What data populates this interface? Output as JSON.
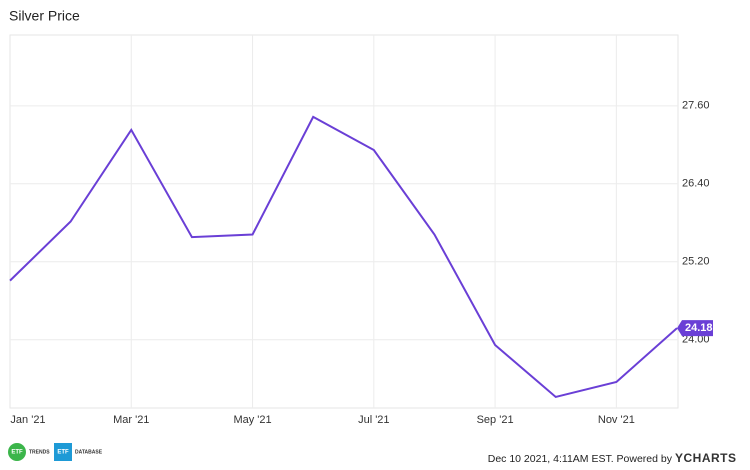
{
  "chart_data": {
    "type": "line",
    "title": "Silver Price",
    "categories": [
      "Jan '21",
      null,
      "Mar '21",
      null,
      "May '21",
      null,
      "Jul '21",
      null,
      "Sep '21",
      null,
      "Nov '21",
      null
    ],
    "series": [
      {
        "name": "Silver Price",
        "color": "#6a3fd6",
        "values": [
          24.91,
          25.82,
          27.23,
          25.58,
          25.62,
          27.43,
          26.92,
          25.62,
          23.92,
          23.12,
          23.35,
          24.18
        ]
      }
    ],
    "ylim": [
      22.95,
      28.69
    ],
    "yticks": [
      {
        "value": 24,
        "label": "24.00"
      },
      {
        "value": 25.2,
        "label": "25.20"
      },
      {
        "value": 26.4,
        "label": "26.40"
      },
      {
        "value": 27.6,
        "label": "27.60"
      }
    ],
    "grid": true,
    "logos": [
      {
        "mark": "ETF",
        "text": "TRENDS",
        "color": "#3bb54a"
      },
      {
        "mark": "ETF",
        "text": "DATABASE",
        "color": "#1e9ad6"
      }
    ],
    "footer": "Dec 10 2021, 4:11AM EST. Powered by",
    "brand": "YCHARTS"
  }
}
